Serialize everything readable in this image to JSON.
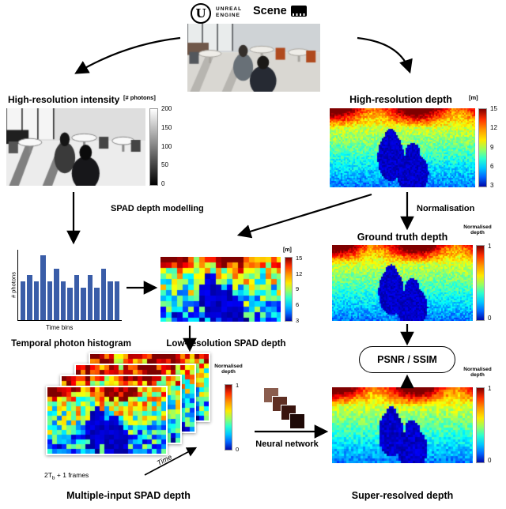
{
  "header": {
    "logo_letter": "U",
    "engine_line1": "UNREAL",
    "engine_line2": "ENGINE",
    "scene_label": "Scene"
  },
  "intensity": {
    "title": "High-resolution intensity",
    "unit": "[# photons]",
    "ticks": [
      "200",
      "150",
      "100",
      "50",
      "0"
    ]
  },
  "hires_depth": {
    "title": "High-resolution depth",
    "unit": "[m]",
    "ticks": [
      "15",
      "12",
      "9",
      "6",
      "3"
    ]
  },
  "edges": {
    "spad_modelling": "SPAD depth modelling",
    "normalisation": "Normalisation",
    "neural_network": "Neural network"
  },
  "ground_truth": {
    "title": "Ground truth depth",
    "colorbar_label_line1": "Normalised",
    "colorbar_label_line2": "depth",
    "ticks": [
      "1",
      "0"
    ]
  },
  "lowres_depth": {
    "title": "Low-resolution SPAD depth",
    "unit": "[m]",
    "ticks": [
      "15",
      "12",
      "9",
      "6",
      "3"
    ]
  },
  "multi_input": {
    "title": "Multiple-input SPAD depth",
    "frames_prefix": "2T",
    "frames_sub": "b",
    "frames_suffix": " + 1 frames",
    "time_label": "Time",
    "colorbar_label_line1": "Normalised",
    "colorbar_label_line2": "depth",
    "ticks": [
      "1",
      "0"
    ]
  },
  "metric": {
    "label": "PSNR / SSIM"
  },
  "super_resolved": {
    "title": "Super-resolved depth",
    "colorbar_label_line1": "Normalised",
    "colorbar_label_line2": "depth",
    "ticks": [
      "1",
      "0"
    ]
  },
  "chart_data": {
    "type": "bar",
    "title": "Temporal photon histogram",
    "xlabel": "Time bins",
    "ylabel": "# photons",
    "values": [
      6,
      7,
      6,
      10,
      6,
      8,
      6,
      5,
      7,
      5,
      7,
      5,
      8,
      6,
      6
    ],
    "ylim": [
      0,
      10
    ],
    "bar_color": "#3a5da8",
    "grid": false,
    "legend": "none"
  }
}
